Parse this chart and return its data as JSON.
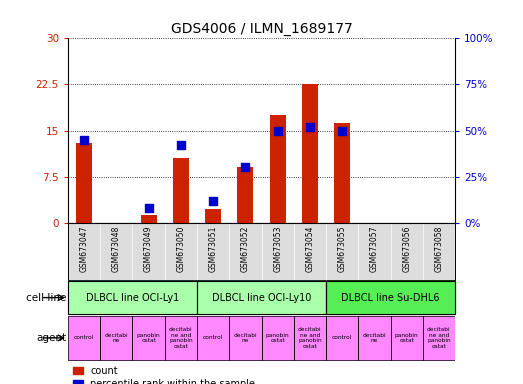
{
  "title": "GDS4006 / ILMN_1689177",
  "samples": [
    "GSM673047",
    "GSM673048",
    "GSM673049",
    "GSM673050",
    "GSM673051",
    "GSM673052",
    "GSM673053",
    "GSM673054",
    "GSM673055",
    "GSM673057",
    "GSM673056",
    "GSM673058"
  ],
  "counts": [
    13.0,
    0,
    1.2,
    10.5,
    2.2,
    9.0,
    17.5,
    22.5,
    16.2,
    0,
    0,
    0
  ],
  "percentiles": [
    45,
    0,
    8,
    42,
    12,
    30,
    50,
    52,
    50,
    0,
    0,
    0
  ],
  "left_ylim": [
    0,
    30
  ],
  "right_ylim": [
    0,
    100
  ],
  "left_yticks": [
    0,
    7.5,
    15,
    22.5,
    30
  ],
  "right_yticks": [
    0,
    25,
    50,
    75,
    100
  ],
  "left_yticklabels": [
    "0",
    "7.5",
    "15",
    "22.5",
    "30"
  ],
  "right_yticklabels": [
    "0%",
    "25%",
    "50%",
    "75%",
    "100%"
  ],
  "cell_line_groups": [
    {
      "label": "DLBCL line OCI-Ly1",
      "start": 0,
      "end": 3,
      "color": "#aaffaa"
    },
    {
      "label": "DLBCL line OCI-Ly10",
      "start": 4,
      "end": 7,
      "color": "#aaffaa"
    },
    {
      "label": "DLBCL line Su-DHL6",
      "start": 8,
      "end": 11,
      "color": "#55ee55"
    }
  ],
  "agent_labels": [
    "control",
    "decitabi\nne",
    "panobin\nostat",
    "decitabi\nne and\npanobin\nostat",
    "control",
    "decitabi\nne",
    "panobin\nostat",
    "decitabi\nne and\npanobin\nostat",
    "control",
    "decitabi\nne",
    "panobin\nostat",
    "decitabi\nne and\npanobin\nostat"
  ],
  "agent_color": "#ff88ff",
  "bar_color": "#cc2200",
  "dot_color": "#0000cc",
  "tick_color_left": "#cc2200",
  "tick_color_right": "#0000cc",
  "sample_bg": "#dddddd",
  "legend_items": [
    {
      "color": "#cc2200",
      "label": "count"
    },
    {
      "color": "#0000cc",
      "label": "percentile rank within the sample"
    }
  ]
}
